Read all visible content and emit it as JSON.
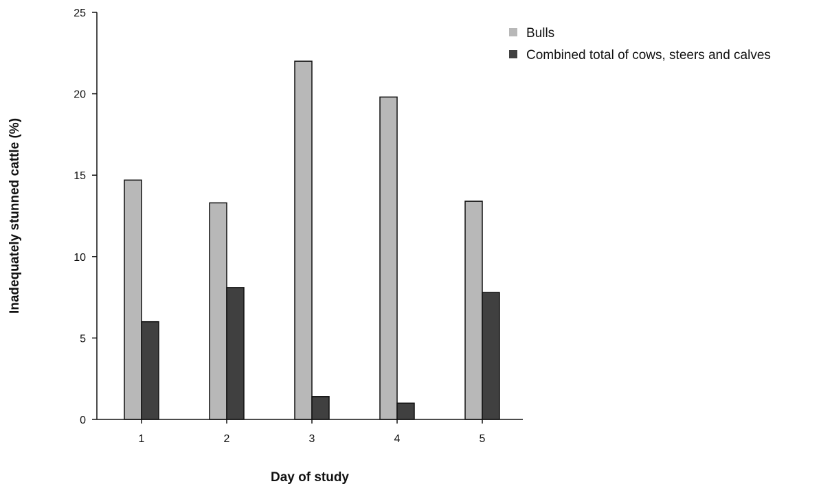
{
  "chart_data": {
    "type": "bar",
    "categories": [
      "1",
      "2",
      "3",
      "4",
      "5"
    ],
    "series": [
      {
        "name": "Bulls",
        "values": [
          14.7,
          13.3,
          22.0,
          19.8,
          13.4
        ],
        "color": "#b8b8b8"
      },
      {
        "name": "Combined total of cows, steers and calves",
        "values": [
          6.0,
          8.1,
          1.4,
          1.0,
          7.8
        ],
        "color": "#404040"
      }
    ],
    "xlabel": "Day of study",
    "ylabel": "Inadequately stunned cattle (%)",
    "ylim": [
      0,
      25
    ],
    "yticks": [
      0,
      5,
      10,
      15,
      20,
      25
    ],
    "grid": false,
    "legend_position": "top-right"
  }
}
